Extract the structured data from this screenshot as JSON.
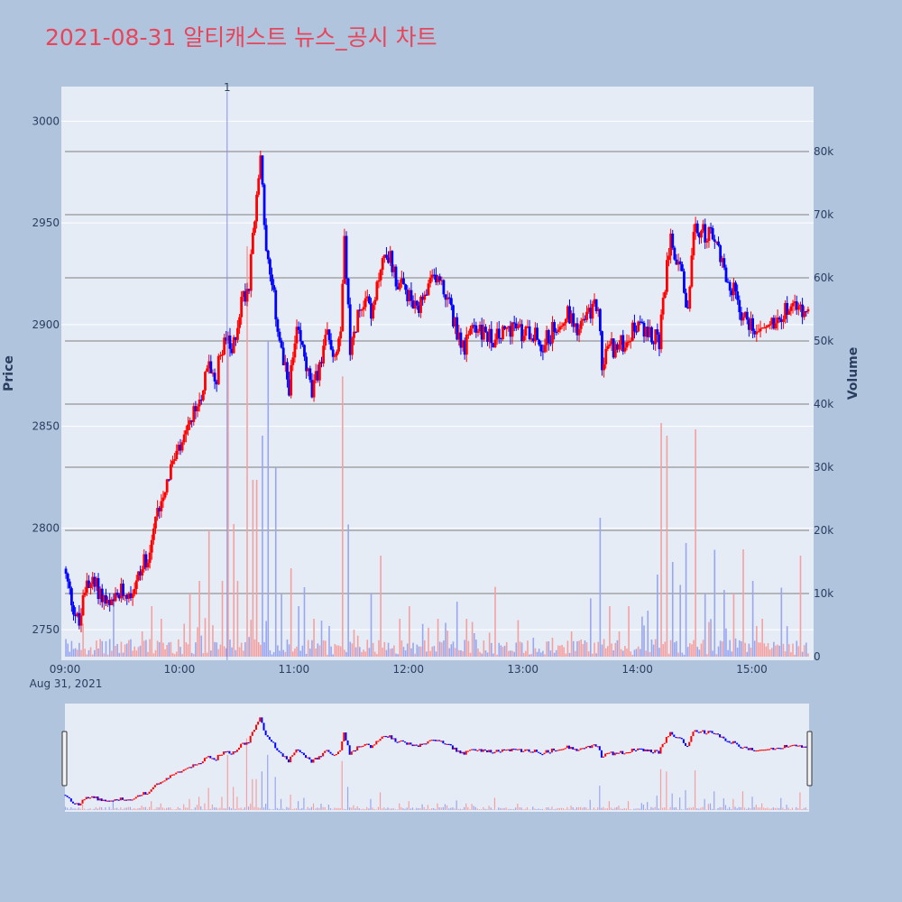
{
  "title": "2021-08-31 알티캐스트 뉴스_공시 차트",
  "colors": {
    "page_bg": "#b0c4de",
    "plot_bg": "#e5ecf6",
    "up": "#ff0000",
    "down": "#0000ff",
    "up_volume": "#f4a0a0",
    "down_volume": "#9aa6ee",
    "title": "#e8445a",
    "grid": "#ffffff",
    "volume_grid": "#7f7f7f",
    "marker_line": "#8890e8"
  },
  "marker": {
    "label": "1",
    "time": "10:25"
  },
  "chart_data": {
    "type": "candlestick",
    "title": "2021-08-31 알티캐스트 뉴스_공시 차트",
    "ylabel": "Price",
    "y2label": "Volume",
    "xlabel": "",
    "x_start": "09:00",
    "x_end": "15:30",
    "ylim": [
      2735,
      3017
    ],
    "y2lim": [
      0,
      90000
    ],
    "y_ticks": [
      2750,
      2800,
      2850,
      2900,
      2950,
      3000
    ],
    "y2_ticks": [
      0,
      10000,
      20000,
      30000,
      40000,
      50000,
      60000,
      70000,
      80000
    ],
    "y2_tick_labels": [
      "0",
      "10k",
      "20k",
      "30k",
      "40k",
      "50k",
      "60k",
      "70k",
      "80k"
    ],
    "x_ticks": [
      "09:00",
      "10:00",
      "11:00",
      "12:00",
      "13:00",
      "14:00",
      "15:00"
    ],
    "x_date_label": "Aug 31, 2021",
    "grid": true,
    "series": [
      {
        "kind": "price_path",
        "points": [
          [
            "09:00",
            2780
          ],
          [
            "09:03",
            2768
          ],
          [
            "09:06",
            2758
          ],
          [
            "09:08",
            2752
          ],
          [
            "09:12",
            2775
          ],
          [
            "09:18",
            2770
          ],
          [
            "09:24",
            2760
          ],
          [
            "09:30",
            2768
          ],
          [
            "09:36",
            2770
          ],
          [
            "09:40",
            2778
          ],
          [
            "09:45",
            2790
          ],
          [
            "09:50",
            2812
          ],
          [
            "09:56",
            2830
          ],
          [
            "10:02",
            2840
          ],
          [
            "10:08",
            2855
          ],
          [
            "10:13",
            2870
          ],
          [
            "10:16",
            2880
          ],
          [
            "10:20",
            2875
          ],
          [
            "10:24",
            2895
          ],
          [
            "10:28",
            2885
          ],
          [
            "10:33",
            2912
          ],
          [
            "10:37",
            2920
          ],
          [
            "10:39",
            2950
          ],
          [
            "10:41",
            2960
          ],
          [
            "10:43",
            2985
          ],
          [
            "10:46",
            2935
          ],
          [
            "10:50",
            2912
          ],
          [
            "10:55",
            2880
          ],
          [
            "10:58",
            2870
          ],
          [
            "11:02",
            2895
          ],
          [
            "11:06",
            2885
          ],
          [
            "11:10",
            2865
          ],
          [
            "11:14",
            2880
          ],
          [
            "11:18",
            2895
          ],
          [
            "11:22",
            2885
          ],
          [
            "11:25",
            2900
          ],
          [
            "11:27",
            2948
          ],
          [
            "11:30",
            2885
          ],
          [
            "11:34",
            2905
          ],
          [
            "11:38",
            2915
          ],
          [
            "11:42",
            2905
          ],
          [
            "11:46",
            2930
          ],
          [
            "11:50",
            2935
          ],
          [
            "11:55",
            2920
          ],
          [
            "12:00",
            2915
          ],
          [
            "12:05",
            2905
          ],
          [
            "12:10",
            2915
          ],
          [
            "12:15",
            2925
          ],
          [
            "12:20",
            2915
          ],
          [
            "12:25",
            2900
          ],
          [
            "12:30",
            2888
          ],
          [
            "12:35",
            2900
          ],
          [
            "12:40",
            2895
          ],
          [
            "12:45",
            2893
          ],
          [
            "12:50",
            2895
          ],
          [
            "12:55",
            2900
          ],
          [
            "13:00",
            2895
          ],
          [
            "13:05",
            2898
          ],
          [
            "13:10",
            2890
          ],
          [
            "13:15",
            2895
          ],
          [
            "13:20",
            2903
          ],
          [
            "13:25",
            2905
          ],
          [
            "13:30",
            2898
          ],
          [
            "13:35",
            2905
          ],
          [
            "13:40",
            2910
          ],
          [
            "13:42",
            2878
          ],
          [
            "13:45",
            2890
          ],
          [
            "13:50",
            2888
          ],
          [
            "13:55",
            2893
          ],
          [
            "14:00",
            2900
          ],
          [
            "14:05",
            2895
          ],
          [
            "14:10",
            2895
          ],
          [
            "14:12",
            2890
          ],
          [
            "14:15",
            2920
          ],
          [
            "14:18",
            2948
          ],
          [
            "14:20",
            2935
          ],
          [
            "14:23",
            2930
          ],
          [
            "14:26",
            2905
          ],
          [
            "14:28",
            2920
          ],
          [
            "14:30",
            2945
          ],
          [
            "14:33",
            2945
          ],
          [
            "14:37",
            2945
          ],
          [
            "14:40",
            2942
          ],
          [
            "14:44",
            2935
          ],
          [
            "14:48",
            2920
          ],
          [
            "14:52",
            2915
          ],
          [
            "14:55",
            2905
          ],
          [
            "15:00",
            2900
          ],
          [
            "15:05",
            2898
          ],
          [
            "15:10",
            2900
          ],
          [
            "15:15",
            2905
          ],
          [
            "15:20",
            2910
          ],
          [
            "15:30",
            2905
          ]
        ]
      },
      {
        "kind": "volume_spikes",
        "points": [
          [
            "09:25",
            8000
          ],
          [
            "09:40",
            4000
          ],
          [
            "09:45",
            8000
          ],
          [
            "09:50",
            6000
          ],
          [
            "10:05",
            10000
          ],
          [
            "10:10",
            12000
          ],
          [
            "10:15",
            20000
          ],
          [
            "10:22",
            12000
          ],
          [
            "10:25",
            50000
          ],
          [
            "10:28",
            21000
          ],
          [
            "10:30",
            12000
          ],
          [
            "10:35",
            65000
          ],
          [
            "10:38",
            28000
          ],
          [
            "10:40",
            28000
          ],
          [
            "10:43",
            35000
          ],
          [
            "10:46",
            50000
          ],
          [
            "10:50",
            30000
          ],
          [
            "10:53",
            10000
          ],
          [
            "10:58",
            14000
          ],
          [
            "11:02",
            8000
          ],
          [
            "11:05",
            11000
          ],
          [
            "11:10",
            6000
          ],
          [
            "11:25",
            43000
          ],
          [
            "11:28",
            18000
          ],
          [
            "11:40",
            10000
          ],
          [
            "11:45",
            16000
          ],
          [
            "11:55",
            6000
          ],
          [
            "12:00",
            8000
          ],
          [
            "12:15",
            6000
          ],
          [
            "12:25",
            8000
          ],
          [
            "12:30",
            6000
          ],
          [
            "12:45",
            8000
          ],
          [
            "13:05",
            3000
          ],
          [
            "13:15",
            3000
          ],
          [
            "13:25",
            4000
          ],
          [
            "13:35",
            6000
          ],
          [
            "13:40",
            22000
          ],
          [
            "13:45",
            8000
          ],
          [
            "13:50",
            4000
          ],
          [
            "13:55",
            8000
          ],
          [
            "14:05",
            5000
          ],
          [
            "14:10",
            13000
          ],
          [
            "14:12",
            37000
          ],
          [
            "14:15",
            35000
          ],
          [
            "14:18",
            15000
          ],
          [
            "14:22",
            10000
          ],
          [
            "14:25",
            18000
          ],
          [
            "14:30",
            36000
          ],
          [
            "14:35",
            10000
          ],
          [
            "14:40",
            12000
          ],
          [
            "14:45",
            8000
          ],
          [
            "14:50",
            10000
          ],
          [
            "14:55",
            17000
          ],
          [
            "15:00",
            12000
          ],
          [
            "15:05",
            6000
          ],
          [
            "15:15",
            10000
          ],
          [
            "15:25",
            16000
          ]
        ]
      }
    ]
  }
}
